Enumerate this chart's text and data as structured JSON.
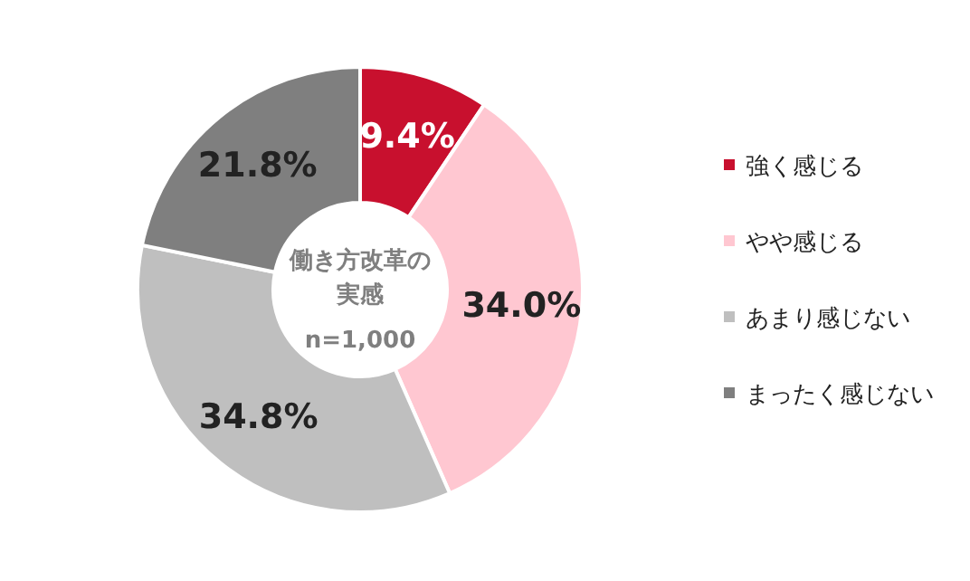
{
  "chart_data": {
    "type": "donut",
    "title": "働き方改革の実感",
    "annotations": [
      "n=1,000"
    ],
    "categories": [
      "強く感じる",
      "やや感じる",
      "あまり感じない",
      "まったく感じない"
    ],
    "values": [
      9.4,
      34.0,
      34.8,
      21.8
    ],
    "colors": [
      "#c8102e",
      "#ffc7d1",
      "#bfbfbf",
      "#7f7f7f"
    ],
    "value_labels": [
      "9.4%",
      "34.0%",
      "34.8%",
      "21.8%"
    ],
    "legend": "right"
  }
}
